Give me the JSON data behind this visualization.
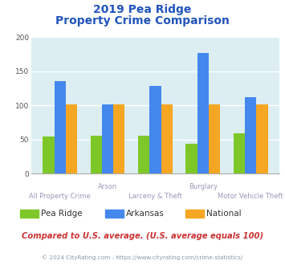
{
  "title_line1": "2019 Pea Ridge",
  "title_line2": "Property Crime Comparison",
  "x_labels_top": [
    "",
    "Arson",
    "",
    "Burglary",
    ""
  ],
  "x_labels_bottom": [
    "All Property Crime",
    "",
    "Larceny & Theft",
    "",
    "Motor Vehicle Theft"
  ],
  "series": {
    "Pea Ridge": [
      54,
      55,
      55,
      44,
      59
    ],
    "Arkansas": [
      135,
      101,
      129,
      177,
      112
    ],
    "National": [
      101,
      101,
      101,
      101,
      101
    ]
  },
  "colors": {
    "Pea Ridge": "#7dc828",
    "Arkansas": "#4488ee",
    "National": "#f5a623"
  },
  "ylim": [
    0,
    200
  ],
  "yticks": [
    0,
    50,
    100,
    150,
    200
  ],
  "plot_bg": "#dceef2",
  "title_color": "#2255bb",
  "footnote": "Compared to U.S. average. (U.S. average equals 100)",
  "footnote_color": "#cc3333",
  "copyright": "© 2024 CityRating.com - https://www.cityrating.com/crime-statistics/",
  "copyright_color": "#8899aa",
  "label_color": "#9999bb"
}
